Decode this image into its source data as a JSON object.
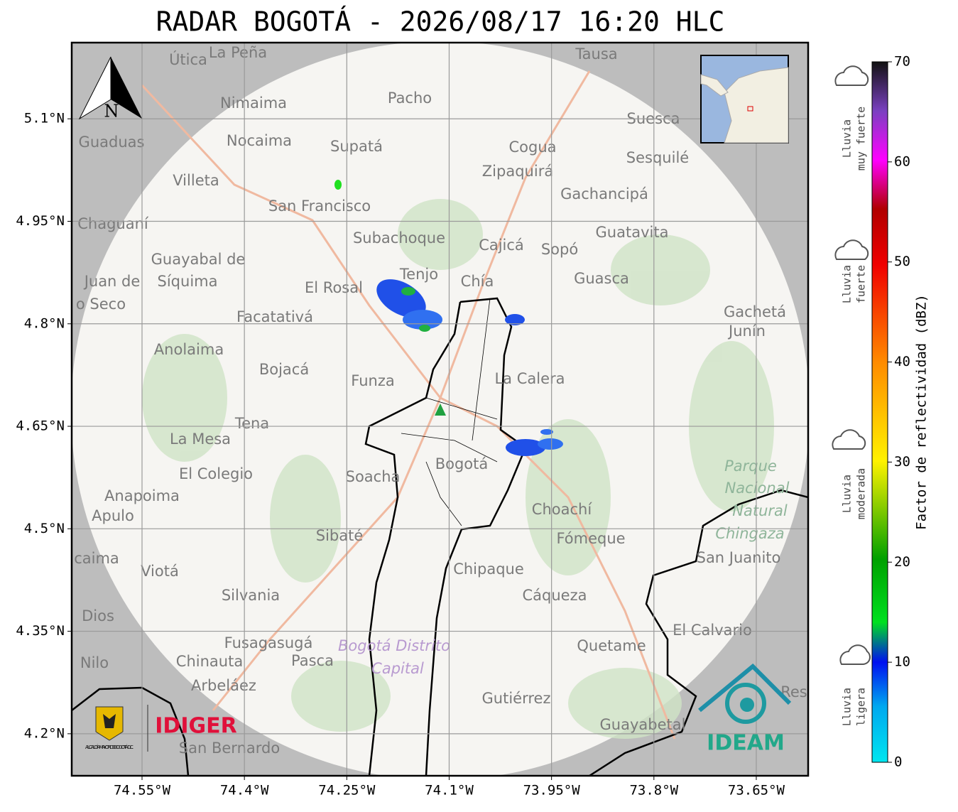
{
  "header": {
    "title": "RADAR BOGOTÁ - 2026/08/17 16:20 HLC"
  },
  "map": {
    "xlim": [
      -74.653,
      -73.574
    ],
    "ylim": [
      4.1385,
      5.2115
    ],
    "xticks": [
      {
        "value": -74.55,
        "label": "74.55°W"
      },
      {
        "value": -74.4,
        "label": "74.4°W"
      },
      {
        "value": -74.25,
        "label": "74.25°W"
      },
      {
        "value": -74.1,
        "label": "74.1°W"
      },
      {
        "value": -73.95,
        "label": "73.95°W"
      },
      {
        "value": -73.8,
        "label": "73.8°W"
      },
      {
        "value": -73.65,
        "label": "73.65°W"
      }
    ],
    "yticks": [
      {
        "value": 5.1,
        "label": "5.1°N"
      },
      {
        "value": 4.95,
        "label": "4.95°N"
      },
      {
        "value": 4.8,
        "label": "4.8°N"
      },
      {
        "value": 4.65,
        "label": "4.65°N"
      },
      {
        "value": 4.5,
        "label": "4.5°N"
      },
      {
        "value": 4.35,
        "label": "4.35°N"
      },
      {
        "value": 4.2,
        "label": "4.2°N"
      }
    ],
    "grid": true,
    "north": "N",
    "places": [
      "Útica",
      "La Peña",
      "Tausa",
      "Pacho",
      "Nimaima",
      "Guaduas",
      "Nocaima",
      "Supatá",
      "Cogua",
      "Suesca",
      "Sesquilé",
      "Zipaquirá",
      "Villeta",
      "Gachancipá",
      "San Francisco",
      "Chaguaní",
      "Subachoque",
      "Guatavita",
      "Cajicá",
      "Sopó",
      "Guayabal de",
      "Síquima",
      "Juan de",
      "Tenjo",
      "Chía",
      "Guasca",
      "El Rosal",
      "o Seco",
      "Facatativá",
      "Gachetá",
      "Junín",
      "Anolaima",
      "Bojacá",
      "Funza",
      "La Calera",
      "Tena",
      "La Mesa",
      "El Colegio",
      "Soacha",
      "Bogotá",
      "Parque",
      "Nacional",
      "Natural",
      "Chingaza",
      "Anapoima",
      "Apulo",
      "Choachí",
      "Sibaté",
      "Fómeque",
      "San Juanito",
      "caima",
      "Viotá",
      "Chipaque",
      "Silvania",
      "Cáqueza",
      "Dios",
      "El Calvario",
      "Fusagasugá",
      "Bogotá Distrito",
      "Quetame",
      "Capital",
      "Nilo",
      "Chinauta",
      "Pasca",
      "Arbeláez",
      "Gutiérrez",
      "Res",
      "Guayabetal",
      "San Bernardo"
    ]
  },
  "logos": {
    "alcaldia": "ALCALDÍA MAYOR DE BOGOTÁ D.C.",
    "idiger": "IDIGER",
    "ideam": "IDEAM"
  },
  "colorbar": {
    "label": "Factor de reflectividad (dBZ)",
    "lim": [
      0,
      70
    ],
    "ticks": [
      0,
      10,
      20,
      30,
      40,
      50,
      60,
      70
    ]
  },
  "rain_legend": [
    {
      "lines": [
        "Lluvia",
        "muy fuerte"
      ]
    },
    {
      "lines": [
        "Lluvia",
        "fuerte"
      ]
    },
    {
      "lines": [
        "Lluvia",
        "moderada"
      ]
    },
    {
      "lines": [
        "Lluvia",
        "ligera"
      ]
    }
  ]
}
